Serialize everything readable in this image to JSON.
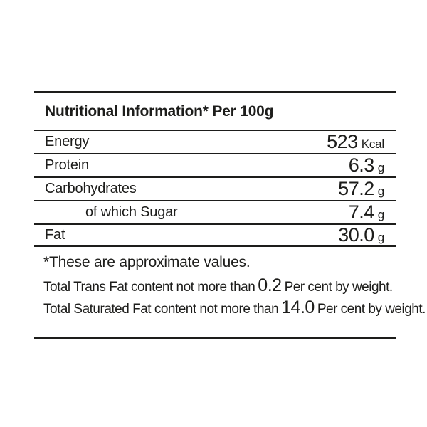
{
  "label": {
    "title": "Nutritional Information* Per 100g",
    "rows": [
      {
        "label": "Energy",
        "value": "523",
        "unit": "Kcal",
        "indent": false
      },
      {
        "label": "Protein",
        "value": "6.3",
        "unit": "g",
        "indent": false
      },
      {
        "label": "Carbohydrates",
        "value": "57.2",
        "unit": "g",
        "indent": false
      },
      {
        "label": "of which Sugar",
        "value": "7.4",
        "unit": "g",
        "indent": true
      },
      {
        "label": "Fat",
        "value": "30.0",
        "unit": "g",
        "indent": false
      }
    ],
    "footnote": "*These are approximate values.",
    "notes": [
      {
        "prefix": "Total Trans Fat content not more than",
        "value": "0.2",
        "suffix": "Per cent by weight."
      },
      {
        "prefix": "Total Saturated Fat content not more than",
        "value": "14.0",
        "suffix": "Per cent by weight."
      }
    ],
    "colors": {
      "text": "#1d1d1b",
      "rule": "#1d1d1b",
      "background": "#ffffff"
    }
  }
}
